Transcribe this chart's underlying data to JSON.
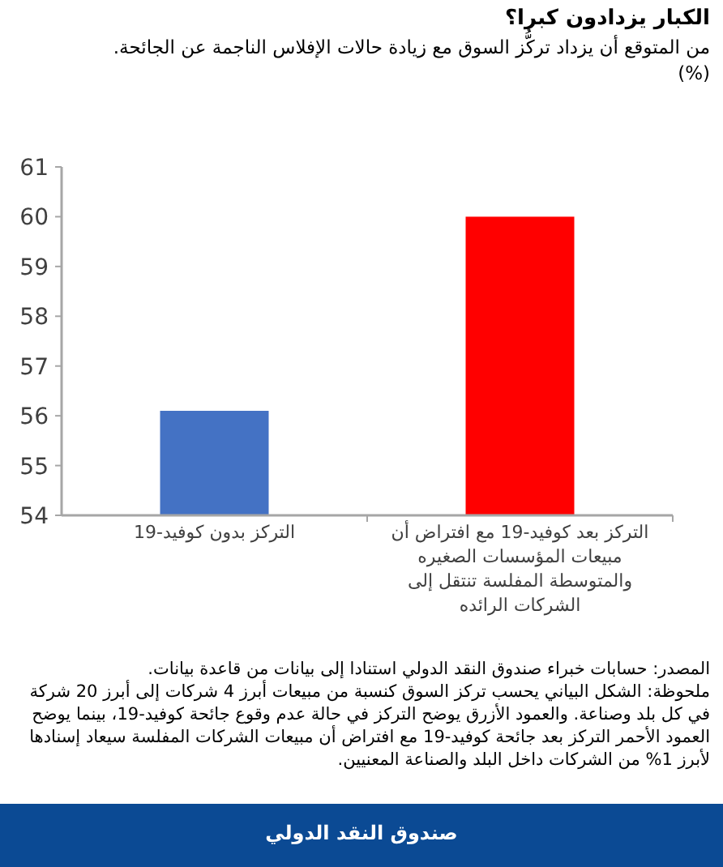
{
  "chart_data": {
    "type": "bar",
    "title": "الكبار يزدادون كبرا؟",
    "subtitle": "من المتوقع أن يزداد تركُّز السوق مع زيادة حالات الإفلاس الناجمة عن الجائحة.",
    "ylabel": "(%)",
    "categories": [
      "التركز بدون كوفيد-19",
      "التركز بعد كوفيد-19 مع افتراض أن مبيعات المؤسسات الصغيره والمتوسطة المفلسة تنتقل إلى الشركات الرائده"
    ],
    "values": [
      56.1,
      60.0
    ],
    "colors": [
      "#4472c4",
      "#ff0000"
    ],
    "ylim": [
      54,
      61
    ],
    "yticks": [
      54,
      55,
      56,
      57,
      58,
      59,
      60,
      61
    ],
    "annotations": [
      "المصدر: حسابات خبراء صندوق النقد الدولي استنادا إلى بيانات من قاعدة بيانات.",
      "ملحوظة: الشكل البياني يحسب تركز السوق كنسبة من مبيعات أبرز 4 شركات إلى أبرز 20 شركة في كل بلد وصناعة. والعمود الأزرق يوضح التركز في حالة عدم وقوع جائحة كوفيد-19، بينما يوضح العمود الأحمر التركز بعد جائحة كوفيد-19 مع افتراض أن مبيعات الشركات المفلسة سيعاد إسنادها لأبرز 1% من الشركات داخل البلد والصناعة المعنيين.",
      "صندوق النقد الدولي"
    ]
  }
}
